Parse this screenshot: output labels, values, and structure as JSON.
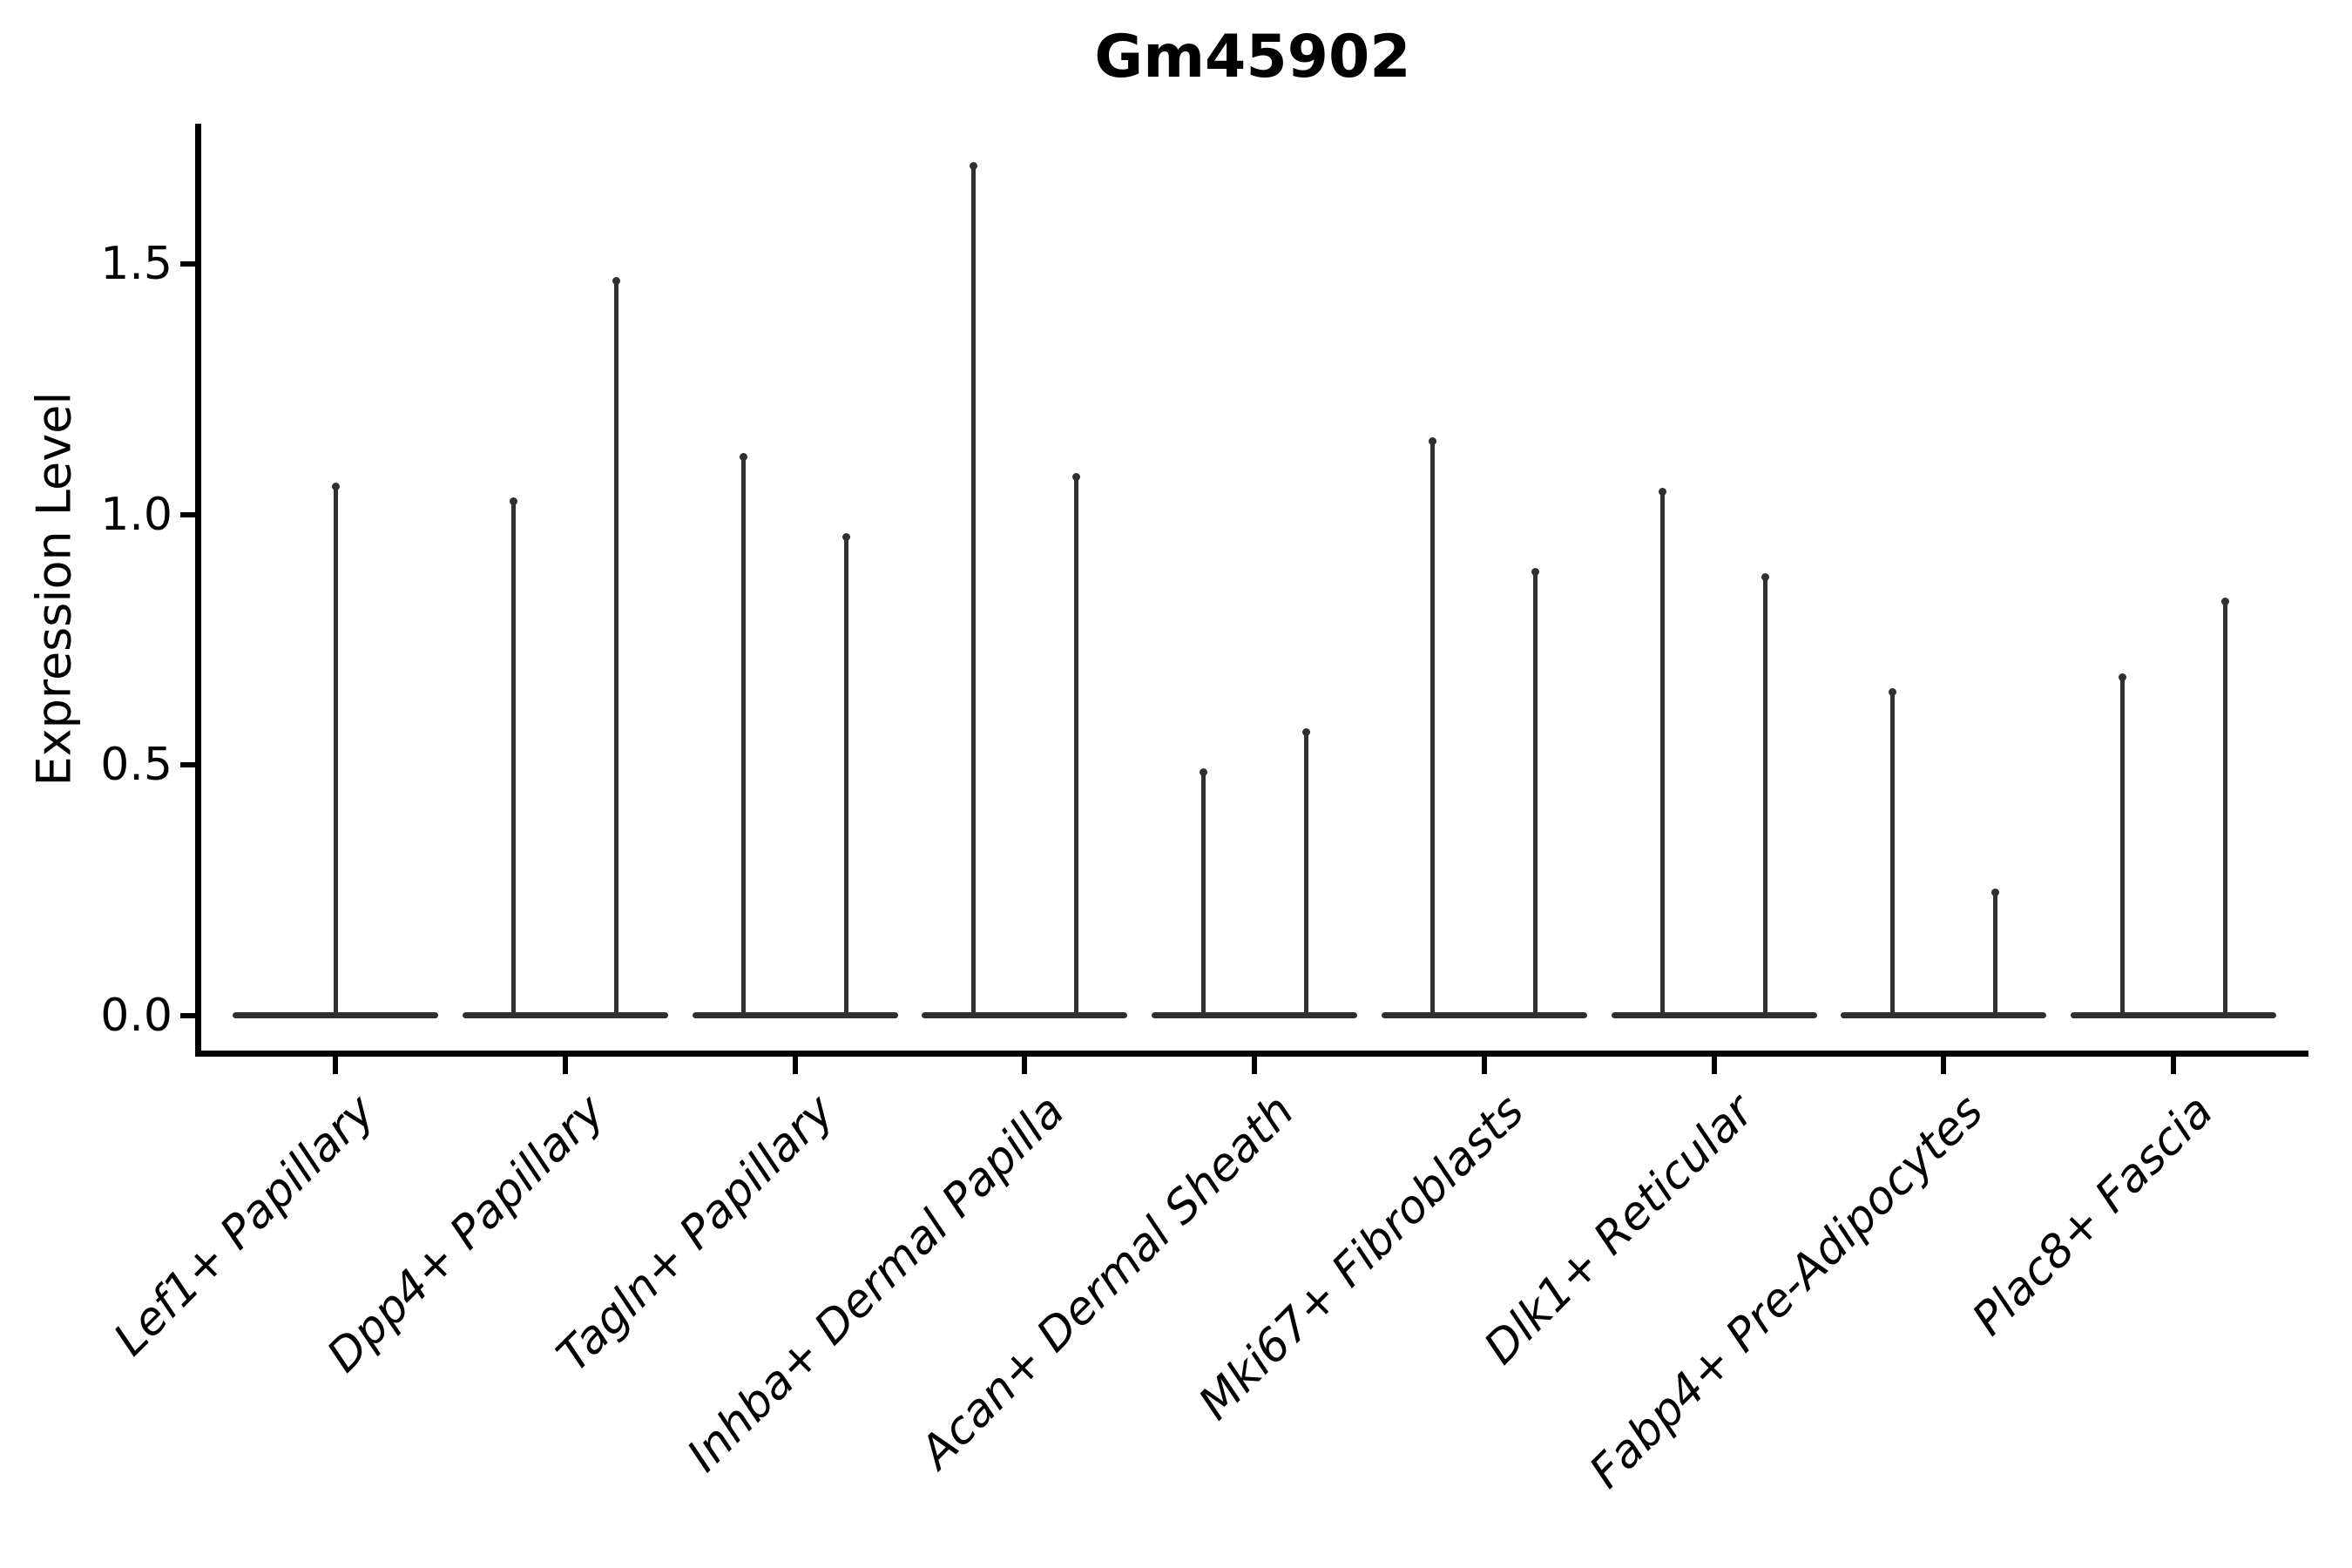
{
  "chart_data": {
    "type": "violin",
    "title": "Gm45902",
    "ylabel": "Expression Level",
    "xlabel": "",
    "grid": false,
    "legend": false,
    "background": "#ffffff",
    "ylim": [
      -0.08,
      1.78
    ],
    "yticks": [
      "0.0",
      "0.5",
      "1.0",
      "1.5"
    ],
    "categories": [
      "Lef1+ Papillary",
      "Dpp4+ Papillary",
      "Tagln+ Papillary",
      "Inhba+ Dermal Papilla",
      "Acan+ Dermal Sheath",
      "Mki67+ Fibroblasts",
      "Dlk1+ Reticular",
      "Fabp4+ Pre-Adipocytes",
      "Plac8+ Fascia"
    ],
    "violins": [
      {
        "category": "Lef1+ Papillary",
        "baseline_value": 0.0,
        "spike_maxima": [
          1.06
        ]
      },
      {
        "category": "Dpp4+ Papillary",
        "baseline_value": 0.0,
        "spike_maxima": [
          1.03,
          1.47
        ]
      },
      {
        "category": "Tagln+ Papillary",
        "baseline_value": 0.0,
        "spike_maxima": [
          1.12,
          0.96
        ]
      },
      {
        "category": "Inhba+ Dermal Papilla",
        "baseline_value": 0.0,
        "spike_maxima": [
          1.7,
          1.08
        ]
      },
      {
        "category": "Acan+ Dermal Sheath",
        "baseline_value": 0.0,
        "spike_maxima": [
          0.49,
          0.57
        ]
      },
      {
        "category": "Mki67+ Fibroblasts",
        "baseline_value": 0.0,
        "spike_maxima": [
          1.15,
          0.89
        ]
      },
      {
        "category": "Dlk1+ Reticular",
        "baseline_value": 0.0,
        "spike_maxima": [
          1.05,
          0.88
        ]
      },
      {
        "category": "Fabp4+ Pre-Adipocytes",
        "baseline_value": 0.0,
        "spike_maxima": [
          0.65,
          0.25
        ]
      },
      {
        "category": "Plac8+ Fascia",
        "baseline_value": 0.0,
        "spike_maxima": [
          0.68,
          0.83
        ]
      }
    ],
    "colors": {
      "violin": "#303030",
      "axis": "#000000",
      "text": "#000000"
    }
  }
}
